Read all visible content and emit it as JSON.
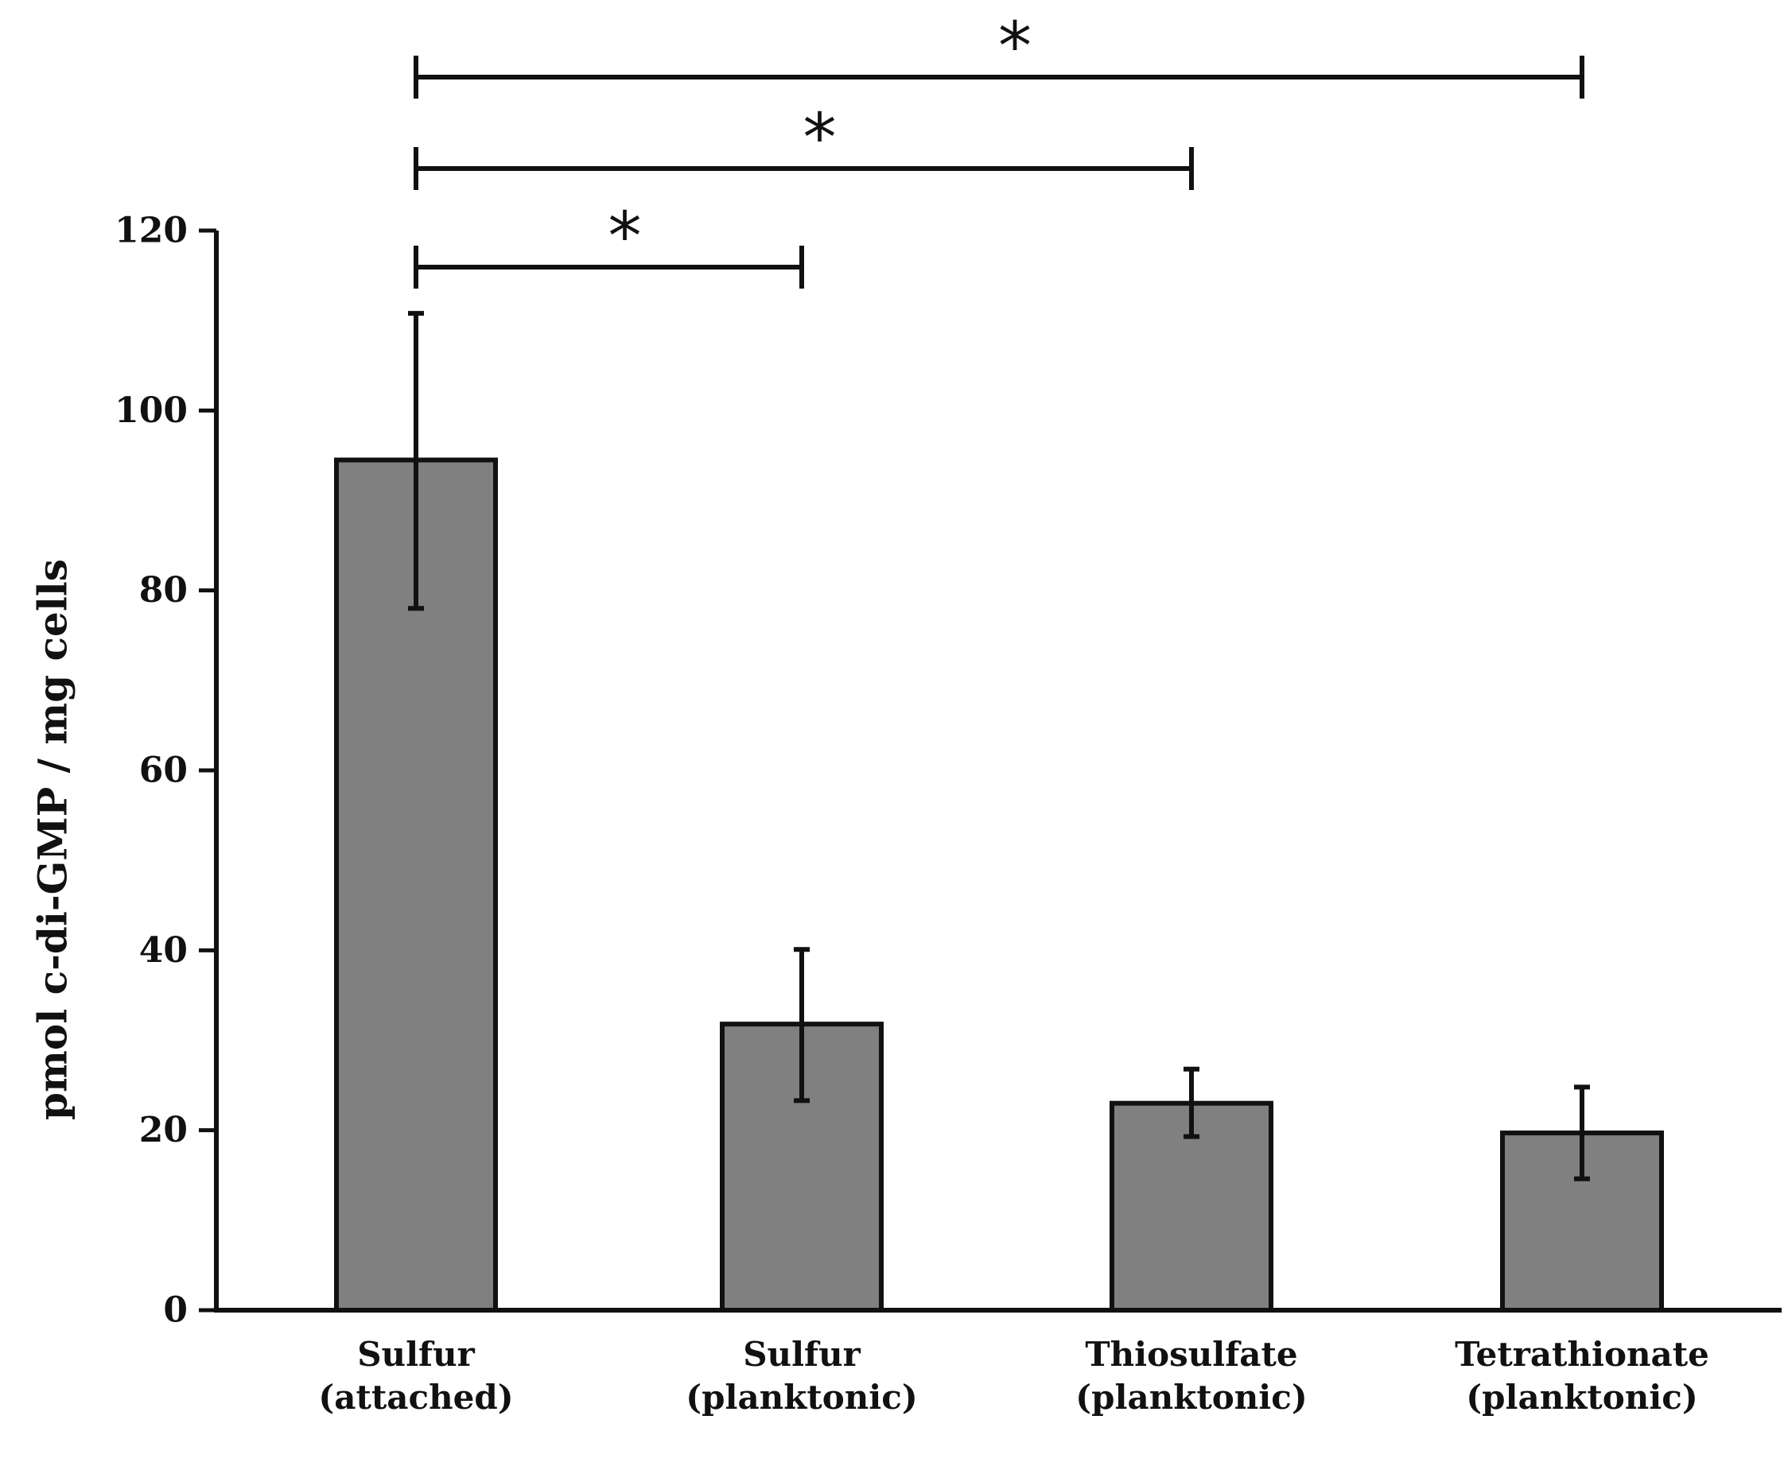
{
  "chart_data": {
    "type": "bar",
    "title": "",
    "xlabel": "",
    "ylabel": "pmol c-di-GMP / mg cells",
    "ylim": [
      0,
      120
    ],
    "yticks": [
      0,
      20,
      40,
      60,
      80,
      100,
      120
    ],
    "grid": false,
    "categories": [
      {
        "line1": "Sulfur",
        "line2": "(attached)"
      },
      {
        "line1": "Sulfur",
        "line2": "(planktonic)"
      },
      {
        "line1": "Thiosulfate",
        "line2": "(planktonic)"
      },
      {
        "line1": "Tetrathionate",
        "line2": "(planktonic)"
      }
    ],
    "values": [
      94.5,
      31.8,
      23.0,
      19.7
    ],
    "error_low": [
      78.0,
      23.3,
      19.3,
      14.6
    ],
    "error_high": [
      110.8,
      40.1,
      26.8,
      24.8
    ],
    "significance": [
      {
        "from": 0,
        "to": 1,
        "label": "*"
      },
      {
        "from": 0,
        "to": 2,
        "label": "*"
      },
      {
        "from": 0,
        "to": 3,
        "label": "*"
      }
    ],
    "colors": {
      "bar_fill": "#808080",
      "stroke": "#111111"
    }
  }
}
